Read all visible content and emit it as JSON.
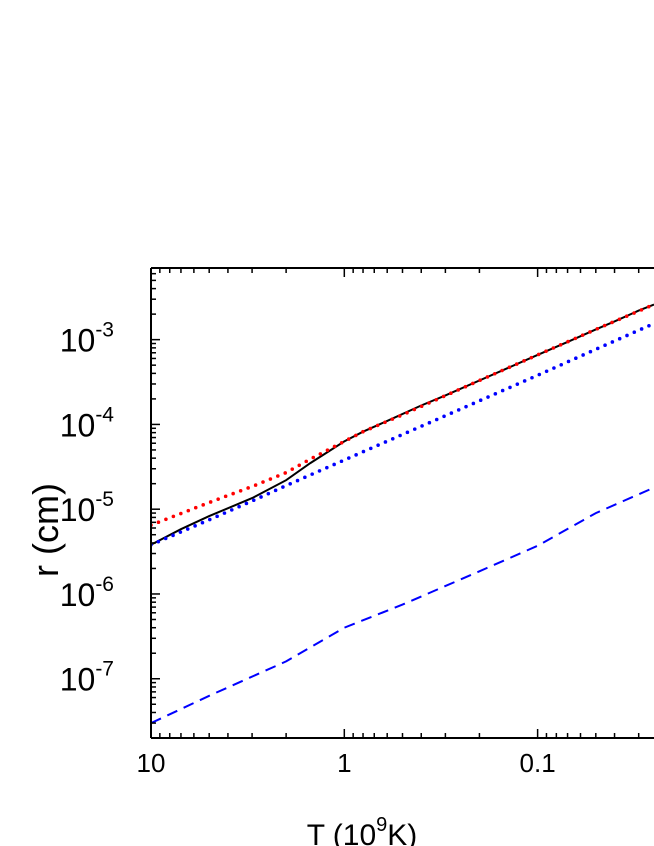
{
  "chart_data": {
    "type": "line",
    "title": "",
    "x_axis": {
      "label_main": "T  (10",
      "label_sup": "9",
      "label_end": "K)",
      "scale": "log",
      "direction": "decreasing",
      "range": [
        10,
        0.025
      ],
      "ticks": [
        {
          "value": 10,
          "label": "10"
        },
        {
          "value": 1,
          "label": "1"
        },
        {
          "value": 0.1,
          "label": "0.1"
        }
      ]
    },
    "y_axis": {
      "label": "r  (cm)",
      "scale": "log",
      "range": [
        2e-08,
        0.007
      ],
      "ticks": [
        {
          "value": 0.001,
          "base": "10",
          "exp": "-3"
        },
        {
          "value": 0.0001,
          "base": "10",
          "exp": "-4"
        },
        {
          "value": 1e-05,
          "base": "10",
          "exp": "-5"
        },
        {
          "value": 1e-06,
          "base": "10",
          "exp": "-6"
        },
        {
          "value": 1e-07,
          "base": "10",
          "exp": "-7"
        }
      ]
    },
    "grid": false,
    "series": [
      {
        "style": "solid",
        "color": "#000000",
        "x": [
          10,
          7,
          5,
          3,
          2,
          1.5,
          1,
          0.8,
          0.6,
          0.4,
          0.3,
          0.2,
          0.1,
          0.07,
          0.05,
          0.04,
          0.03,
          0.025
        ],
        "y": [
          3.8e-06,
          5.8e-06,
          8.3e-06,
          1.35e-05,
          2.2e-05,
          3.5e-05,
          6.3e-05,
          8.2e-05,
          0.00011,
          0.000167,
          0.00022,
          0.00033,
          0.00066,
          0.00094,
          0.00132,
          0.00164,
          0.0022,
          0.0026
        ]
      },
      {
        "style": "dotted",
        "color": "#ff0000",
        "x": [
          10,
          5,
          3,
          2,
          1.5,
          1,
          0.8,
          0.5,
          0.2,
          0.1,
          0.05,
          0.025
        ],
        "y": [
          6.5e-06,
          1.2e-05,
          1.85e-05,
          2.7e-05,
          3.9e-05,
          6.3e-05,
          8.2e-05,
          0.00013,
          0.00033,
          0.00066,
          0.00132,
          0.0026
        ]
      },
      {
        "style": "dotted",
        "color": "#0000ff",
        "x": [
          10,
          5,
          3,
          2,
          1,
          0.5,
          0.2,
          0.1,
          0.05,
          0.025
        ],
        "y": [
          3.8e-06,
          7.5e-06,
          1.25e-05,
          1.9e-05,
          3.8e-05,
          7.6e-05,
          0.00019,
          0.00038,
          0.00077,
          0.00155
        ]
      },
      {
        "style": "dashed",
        "color": "#0000ff",
        "x": [
          10,
          5,
          2,
          1,
          0.5,
          0.2,
          0.1,
          0.05,
          0.025
        ],
        "y": [
          3e-08,
          6.3e-08,
          1.6e-07,
          4e-07,
          7.5e-07,
          1.85e-06,
          3.7e-06,
          9e-06,
          1.8e-05
        ]
      }
    ]
  }
}
